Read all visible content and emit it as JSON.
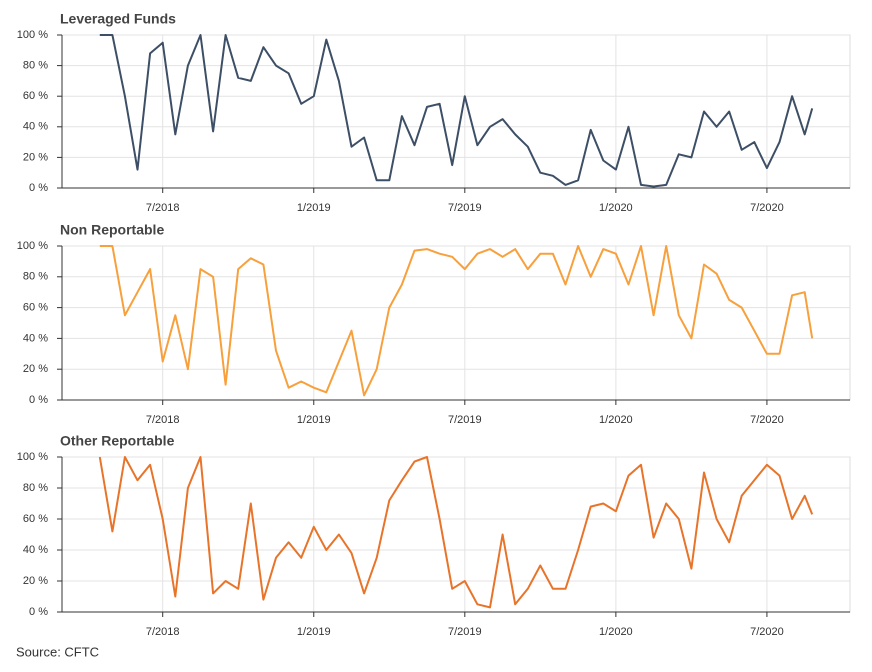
{
  "chart_data": [
    {
      "type": "line",
      "title": "Leveraged Funds",
      "color": "#3d4f66",
      "x": [
        3.5,
        4,
        4.5,
        5,
        5.5,
        6,
        6.5,
        7,
        7.5,
        8,
        8.5,
        9,
        9.5,
        10,
        10.5,
        11,
        11.5,
        12,
        12.5,
        13,
        13.5,
        14,
        14.5,
        15,
        15.5,
        16,
        16.5,
        17,
        17.5,
        18,
        18.5,
        19,
        19.5,
        20,
        20.5,
        21,
        21.5,
        22,
        22.5,
        23,
        23.5,
        24,
        24.5,
        25,
        25.5,
        26,
        26.5,
        27,
        27.5,
        28,
        28.5,
        29,
        29.5,
        30,
        30.5,
        31,
        31.5,
        31.8
      ],
      "values": [
        100,
        100,
        60,
        12,
        88,
        95,
        35,
        80,
        100,
        37,
        100,
        72,
        70,
        92,
        80,
        75,
        55,
        60,
        97,
        70,
        27,
        33,
        5,
        5,
        47,
        28,
        53,
        55,
        15,
        60,
        28,
        40,
        45,
        35,
        27,
        10,
        8,
        2,
        5,
        38,
        18,
        12,
        40,
        2,
        1,
        2,
        22,
        20,
        50,
        40,
        50,
        25,
        30,
        13,
        30,
        60,
        35,
        52
      ],
      "xlim": [
        2,
        33.3
      ],
      "ylim": [
        0,
        100
      ],
      "xticks": [
        {
          "value": 6,
          "label": "7/2018"
        },
        {
          "value": 12,
          "label": "1/2019"
        },
        {
          "value": 18,
          "label": "7/2019"
        },
        {
          "value": 24,
          "label": "1/2020"
        },
        {
          "value": 30,
          "label": "7/2020"
        }
      ],
      "yticks": [
        {
          "value": 0,
          "label": "0 %"
        },
        {
          "value": 20,
          "label": "20 %"
        },
        {
          "value": 40,
          "label": "40 %"
        },
        {
          "value": 60,
          "label": "60 %"
        },
        {
          "value": 80,
          "label": "80 %"
        },
        {
          "value": 100,
          "label": "100 %"
        }
      ],
      "grid": true
    },
    {
      "type": "line",
      "title": "Non Reportable",
      "color": "#f7a03c",
      "x": [
        3.5,
        4,
        4.5,
        5,
        5.5,
        6,
        6.5,
        7,
        7.5,
        8,
        8.5,
        9,
        9.5,
        10,
        10.5,
        11,
        11.5,
        12,
        12.5,
        13,
        13.5,
        14,
        14.5,
        15,
        15.5,
        16,
        16.5,
        17,
        17.5,
        18,
        18.5,
        19,
        19.5,
        20,
        20.5,
        21,
        21.5,
        22,
        22.5,
        23,
        23.5,
        24,
        24.5,
        25,
        25.5,
        26,
        26.5,
        27,
        27.5,
        28,
        28.5,
        29,
        29.5,
        30,
        30.5,
        31,
        31.5,
        31.8
      ],
      "values": [
        100,
        100,
        55,
        70,
        85,
        25,
        55,
        20,
        85,
        80,
        10,
        85,
        92,
        88,
        32,
        8,
        12,
        8,
        5,
        25,
        45,
        3,
        20,
        60,
        75,
        97,
        98,
        95,
        93,
        85,
        95,
        98,
        93,
        98,
        85,
        95,
        95,
        75,
        100,
        80,
        98,
        95,
        75,
        100,
        55,
        100,
        55,
        40,
        88,
        82,
        65,
        60,
        45,
        30,
        30,
        68,
        70,
        40
      ],
      "xlim": [
        2,
        33.3
      ],
      "ylim": [
        0,
        100
      ],
      "xticks": [
        {
          "value": 6,
          "label": "7/2018"
        },
        {
          "value": 12,
          "label": "1/2019"
        },
        {
          "value": 18,
          "label": "7/2019"
        },
        {
          "value": 24,
          "label": "1/2020"
        },
        {
          "value": 30,
          "label": "7/2020"
        }
      ],
      "yticks": [
        {
          "value": 0,
          "label": "0 %"
        },
        {
          "value": 20,
          "label": "20 %"
        },
        {
          "value": 40,
          "label": "40 %"
        },
        {
          "value": 60,
          "label": "60 %"
        },
        {
          "value": 80,
          "label": "80 %"
        },
        {
          "value": 100,
          "label": "100 %"
        }
      ],
      "grid": true
    },
    {
      "type": "line",
      "title": "Other Reportable",
      "color": "#e8742a",
      "x": [
        3.5,
        4,
        4.5,
        5,
        5.5,
        6,
        6.5,
        7,
        7.5,
        8,
        8.5,
        9,
        9.5,
        10,
        10.5,
        11,
        11.5,
        12,
        12.5,
        13,
        13.5,
        14,
        14.5,
        15,
        15.5,
        16,
        16.5,
        17,
        17.5,
        18,
        18.5,
        19,
        19.5,
        20,
        20.5,
        21,
        21.5,
        22,
        22.5,
        23,
        23.5,
        24,
        24.5,
        25,
        25.5,
        26,
        26.5,
        27,
        27.5,
        28,
        28.5,
        29,
        29.5,
        30,
        30.5,
        31,
        31.5,
        31.8
      ],
      "values": [
        100,
        52,
        100,
        85,
        95,
        60,
        10,
        80,
        100,
        12,
        20,
        15,
        70,
        8,
        35,
        45,
        35,
        55,
        40,
        50,
        38,
        12,
        35,
        72,
        85,
        97,
        100,
        60,
        15,
        20,
        5,
        3,
        50,
        5,
        15,
        30,
        15,
        15,
        40,
        68,
        70,
        65,
        88,
        95,
        48,
        70,
        60,
        28,
        90,
        60,
        45,
        75,
        85,
        95,
        88,
        60,
        75,
        63
      ],
      "xlim": [
        2,
        33.3
      ],
      "ylim": [
        0,
        100
      ],
      "xticks": [
        {
          "value": 6,
          "label": "7/2018"
        },
        {
          "value": 12,
          "label": "1/2019"
        },
        {
          "value": 18,
          "label": "7/2019"
        },
        {
          "value": 24,
          "label": "1/2020"
        },
        {
          "value": 30,
          "label": "7/2020"
        }
      ],
      "yticks": [
        {
          "value": 0,
          "label": "0 %"
        },
        {
          "value": 20,
          "label": "20 %"
        },
        {
          "value": 40,
          "label": "40 %"
        },
        {
          "value": 60,
          "label": "60 %"
        },
        {
          "value": 80,
          "label": "80 %"
        },
        {
          "value": 100,
          "label": "100 %"
        }
      ],
      "grid": true
    }
  ],
  "source": "Source: CFTC"
}
